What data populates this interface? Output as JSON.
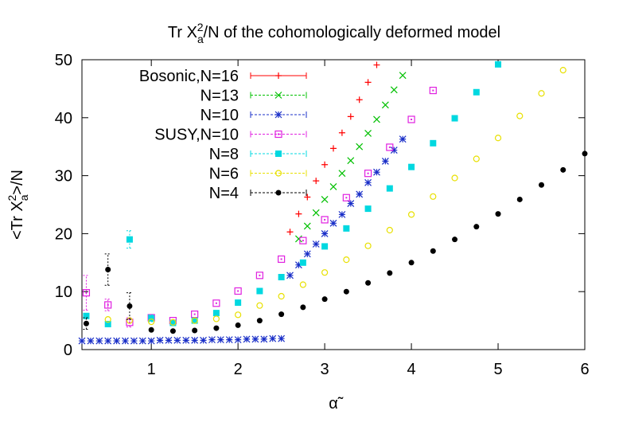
{
  "chart_data": {
    "type": "scatter",
    "title": [
      "Tr X",
      "a",
      "2",
      "/N of the cohomologically deformed model"
    ],
    "xlabel": "α̃",
    "ylabel": [
      "<Tr X",
      "a",
      "2",
      ">/N"
    ],
    "xlim": [
      0.2,
      6
    ],
    "ylim": [
      0,
      50
    ],
    "xticks": [
      1,
      2,
      3,
      4,
      5,
      6
    ],
    "yticks": [
      0,
      10,
      20,
      30,
      40,
      50
    ],
    "grid": false,
    "legend": "upper left",
    "series": [
      {
        "name": "Bosonic,N=16",
        "color": "#ff0000",
        "marker": "plus",
        "x": [
          2.6,
          2.7,
          2.8,
          2.9,
          3.0,
          3.1,
          3.2,
          3.3,
          3.4,
          3.5,
          3.6
        ],
        "values": [
          20.3,
          23.4,
          26.3,
          29.1,
          31.9,
          34.7,
          37.4,
          40.2,
          43.1,
          46.1,
          49.1
        ]
      },
      {
        "name": "N=13",
        "color": "#00c000",
        "marker": "cross",
        "x": [
          2.7,
          2.8,
          2.9,
          3.0,
          3.1,
          3.2,
          3.3,
          3.4,
          3.5,
          3.6,
          3.7,
          3.8,
          3.9
        ],
        "values": [
          19.1,
          21.3,
          23.6,
          25.9,
          28.1,
          30.4,
          32.6,
          35.0,
          37.3,
          39.7,
          42.2,
          44.8,
          47.3
        ]
      },
      {
        "name": "N=10",
        "color": "#1a2fc8",
        "marker": "star",
        "x": [
          0.2,
          0.3,
          0.4,
          0.5,
          0.6,
          0.7,
          0.8,
          0.9,
          1.0,
          1.1,
          1.2,
          1.3,
          1.4,
          1.5,
          1.6,
          1.7,
          1.8,
          1.9,
          2.0,
          2.1,
          2.2,
          2.3,
          2.4,
          2.5,
          2.6,
          2.7,
          2.8,
          2.9,
          3.0,
          3.1,
          3.2,
          3.3,
          3.4,
          3.5,
          3.6,
          3.7,
          3.8,
          3.9
        ],
        "values": [
          1.5,
          1.5,
          1.5,
          1.5,
          1.5,
          1.5,
          1.5,
          1.5,
          1.5,
          1.6,
          1.6,
          1.6,
          1.6,
          1.6,
          1.6,
          1.7,
          1.7,
          1.7,
          1.7,
          1.8,
          1.8,
          1.8,
          1.9,
          1.9,
          12.8,
          14.6,
          16.5,
          18.2,
          20.0,
          21.8,
          23.3,
          25.2,
          26.8,
          28.8,
          30.6,
          32.5,
          34.4,
          36.3
        ]
      },
      {
        "name": "SUSY,N=10",
        "color": "#e020e0",
        "marker": "boxdot",
        "x": [
          0.25,
          0.5,
          0.75,
          1.0,
          1.25,
          1.5,
          1.75,
          2.0,
          2.25,
          2.5,
          2.75,
          3.0,
          3.25,
          3.5,
          3.75,
          4.0,
          4.25
        ],
        "values": [
          9.8,
          7.7,
          4.7,
          5.5,
          5.0,
          6.1,
          8.0,
          10.1,
          12.8,
          15.6,
          18.8,
          22.4,
          26.2,
          30.4,
          34.9,
          39.7,
          44.7
        ],
        "errors": [
          3.0,
          1.0,
          0.8,
          null,
          null,
          null,
          null,
          null,
          null,
          null,
          null,
          null,
          null,
          null,
          null,
          null,
          null
        ]
      },
      {
        "name": "N=8",
        "color": "#00d8e0",
        "marker": "fillsquare",
        "x": [
          0.25,
          0.5,
          0.75,
          1.0,
          1.25,
          1.5,
          1.75,
          2.0,
          2.25,
          2.5,
          2.75,
          3.0,
          3.25,
          3.5,
          3.75,
          4.0,
          4.25,
          4.5,
          4.75,
          5.0
        ],
        "values": [
          5.8,
          4.4,
          19.0,
          5.4,
          4.6,
          5.0,
          6.3,
          8.1,
          10.1,
          12.5,
          15.0,
          17.8,
          20.9,
          24.3,
          27.8,
          31.5,
          35.6,
          39.9,
          44.4,
          49.2
        ],
        "errors": [
          null,
          null,
          1.5,
          0.6,
          null,
          null,
          null,
          null,
          null,
          null,
          null,
          null,
          null,
          null,
          null,
          null,
          null,
          null,
          null,
          null
        ]
      },
      {
        "name": "N=6",
        "color": "#e8e000",
        "marker": "circle",
        "x": [
          0.5,
          0.75,
          1.0,
          1.25,
          1.5,
          1.75,
          2.0,
          2.25,
          2.5,
          2.75,
          3.0,
          3.25,
          3.5,
          3.75,
          4.0,
          4.25,
          4.5,
          4.75,
          5.0,
          5.25,
          5.5,
          5.75
        ],
        "values": [
          5.2,
          5.0,
          4.8,
          4.7,
          5.0,
          5.3,
          6.0,
          7.6,
          9.2,
          11.2,
          13.3,
          15.5,
          17.9,
          20.6,
          23.3,
          26.4,
          29.6,
          32.9,
          36.5,
          40.3,
          44.2,
          48.2
        ]
      },
      {
        "name": "N=4",
        "color": "#000000",
        "marker": "dot",
        "x": [
          0.25,
          0.5,
          0.75,
          1.0,
          1.25,
          1.5,
          1.75,
          2.0,
          2.25,
          2.5,
          2.75,
          3.0,
          3.25,
          3.5,
          3.75,
          4.0,
          4.25,
          4.5,
          4.75,
          5.0,
          5.25,
          5.5,
          5.75,
          6.0
        ],
        "values": [
          4.5,
          13.8,
          7.5,
          3.4,
          3.2,
          3.3,
          3.7,
          4.2,
          5.0,
          6.1,
          7.3,
          8.7,
          10.0,
          11.5,
          13.2,
          15.0,
          17.0,
          19.0,
          21.2,
          23.4,
          25.9,
          28.4,
          31.0,
          33.8
        ],
        "errors": [
          1.0,
          2.7,
          2.3,
          null,
          null,
          null,
          null,
          null,
          null,
          null,
          null,
          null,
          null,
          null,
          null,
          null,
          null,
          null,
          null,
          null,
          null,
          null,
          null,
          null
        ]
      }
    ]
  }
}
